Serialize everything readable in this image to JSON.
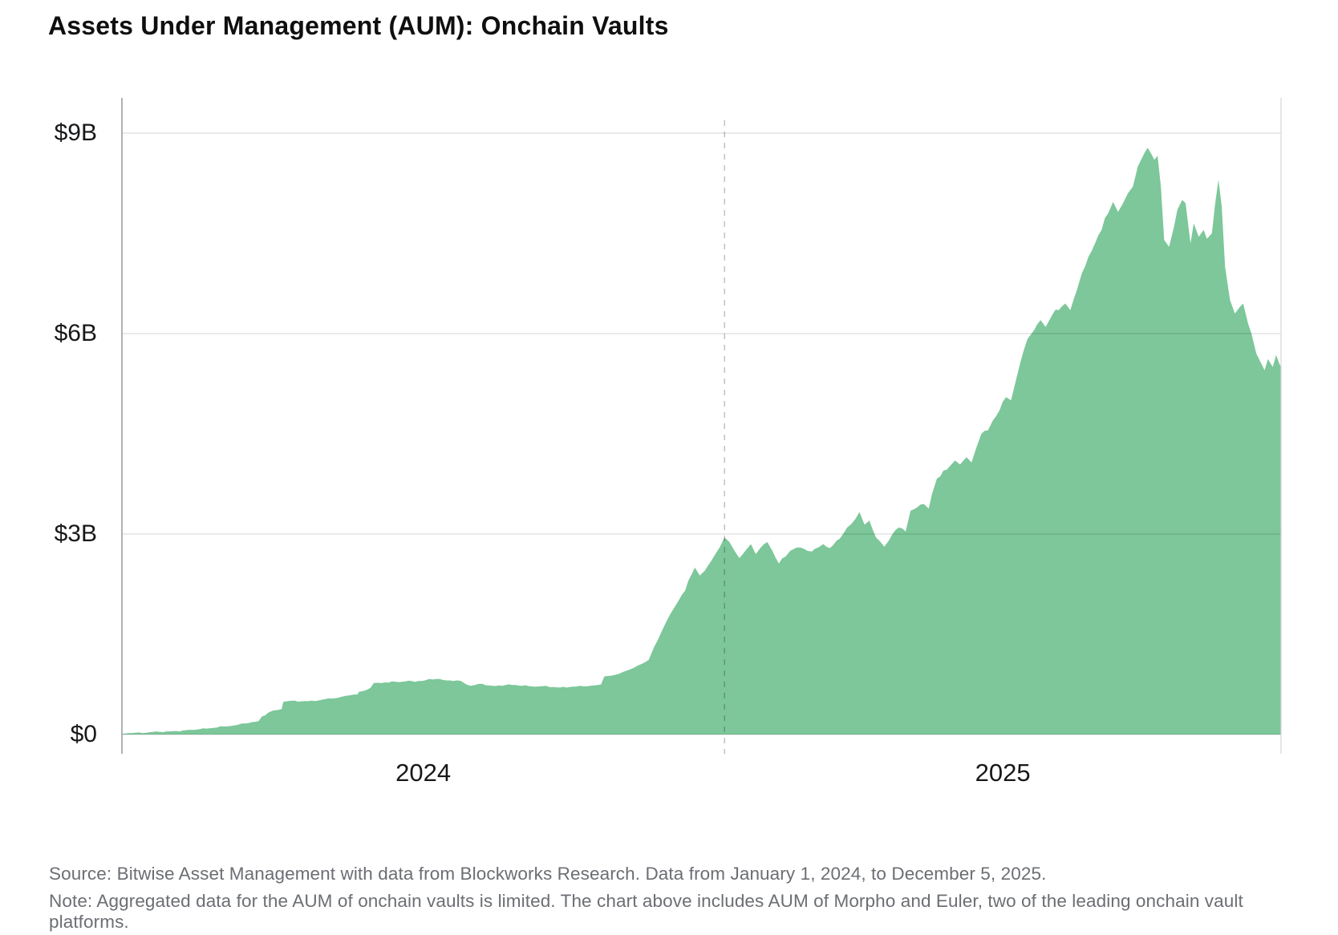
{
  "title": "Assets Under Management (AUM): Onchain Vaults",
  "footer": {
    "source": "Source: Bitwise Asset Management with data from Blockworks Research. Data from January 1, 2024, to December 5, 2025.",
    "note": "Note: Aggregated data for the AUM of onchain vaults is limited. The chart above includes AUM of Morpho and Euler, two of the leading onchain vault platforms."
  },
  "colors": {
    "area": "#7dc79a",
    "grid_on_white": "#e2e2e2",
    "axis_left": "#9e9e9e",
    "axis_right": "#d6d6d6",
    "dashed_reference": "#bdbdbd",
    "title_text": "#0f0f10",
    "tick_text": "#17181a",
    "footer_text": "#6b6e73"
  },
  "chart_data": {
    "type": "area",
    "title": "Assets Under Management (AUM): Onchain Vaults",
    "unit": "USD billions",
    "x_unit": "days since 2024-01-01",
    "x_start_date": "2024-01-01",
    "x_end_date": "2025-12-05",
    "x_domain_days": 704,
    "ylim": [
      0,
      9.5
    ],
    "grid": "horizontal",
    "legend": "none",
    "y_ticks": [
      {
        "label": "$0",
        "value": 0
      },
      {
        "label": "$3B",
        "value": 3
      },
      {
        "label": "$6B",
        "value": 6
      },
      {
        "label": "$9B",
        "value": 9
      }
    ],
    "x_ticks": [
      {
        "label": "2024",
        "day": 183
      },
      {
        "label": "2025",
        "day": 535
      }
    ],
    "reference_line": {
      "date": "2025-01-01",
      "day": 366,
      "style": "dashed"
    },
    "series": [
      {
        "name": "Onchain vault AUM (Morpho + Euler)",
        "color": "#7dc79a",
        "points": [
          [
            0,
            0.01
          ],
          [
            4,
            0.02
          ],
          [
            23,
            0.04
          ],
          [
            43,
            0.07
          ],
          [
            62,
            0.12
          ],
          [
            77,
            0.17
          ],
          [
            83,
            0.2
          ],
          [
            85,
            0.27
          ],
          [
            89,
            0.33
          ],
          [
            92,
            0.36
          ],
          [
            97,
            0.38
          ],
          [
            98,
            0.49
          ],
          [
            101,
            0.5
          ],
          [
            111,
            0.5
          ],
          [
            121,
            0.52
          ],
          [
            131,
            0.55
          ],
          [
            136,
            0.58
          ],
          [
            143,
            0.6
          ],
          [
            144,
            0.64
          ],
          [
            148,
            0.66
          ],
          [
            151,
            0.7
          ],
          [
            153,
            0.77
          ],
          [
            160,
            0.78
          ],
          [
            170,
            0.79
          ],
          [
            180,
            0.8
          ],
          [
            191,
            0.83
          ],
          [
            199,
            0.81
          ],
          [
            206,
            0.8
          ],
          [
            212,
            0.73
          ],
          [
            219,
            0.76
          ],
          [
            225,
            0.73
          ],
          [
            233,
            0.74
          ],
          [
            243,
            0.73
          ],
          [
            253,
            0.72
          ],
          [
            262,
            0.71
          ],
          [
            272,
            0.71
          ],
          [
            282,
            0.72
          ],
          [
            291,
            0.75
          ],
          [
            293,
            0.87
          ],
          [
            297,
            0.88
          ],
          [
            302,
            0.91
          ],
          [
            306,
            0.95
          ],
          [
            311,
            1.0
          ],
          [
            316,
            1.06
          ],
          [
            320,
            1.12
          ],
          [
            323,
            1.3
          ],
          [
            328,
            1.55
          ],
          [
            333,
            1.8
          ],
          [
            338,
            2.0
          ],
          [
            342,
            2.15
          ],
          [
            344,
            2.3
          ],
          [
            348,
            2.5
          ],
          [
            351,
            2.38
          ],
          [
            354,
            2.45
          ],
          [
            358,
            2.6
          ],
          [
            363,
            2.8
          ],
          [
            366,
            2.95
          ],
          [
            369,
            2.88
          ],
          [
            372,
            2.75
          ],
          [
            375,
            2.64
          ],
          [
            379,
            2.76
          ],
          [
            382,
            2.85
          ],
          [
            385,
            2.7
          ],
          [
            388,
            2.8
          ],
          [
            392,
            2.88
          ],
          [
            395,
            2.75
          ],
          [
            399,
            2.56
          ],
          [
            403,
            2.66
          ],
          [
            406,
            2.75
          ],
          [
            410,
            2.8
          ],
          [
            414,
            2.78
          ],
          [
            419,
            2.74
          ],
          [
            423,
            2.8
          ],
          [
            426,
            2.85
          ],
          [
            430,
            2.79
          ],
          [
            434,
            2.9
          ],
          [
            438,
            3.0
          ],
          [
            443,
            3.15
          ],
          [
            448,
            3.33
          ],
          [
            451,
            3.14
          ],
          [
            454,
            3.2
          ],
          [
            458,
            2.95
          ],
          [
            463,
            2.81
          ],
          [
            468,
            3.0
          ],
          [
            472,
            3.1
          ],
          [
            476,
            3.04
          ],
          [
            479,
            3.35
          ],
          [
            483,
            3.4
          ],
          [
            487,
            3.45
          ],
          [
            490,
            3.38
          ],
          [
            492,
            3.6
          ],
          [
            495,
            3.83
          ],
          [
            499,
            3.95
          ],
          [
            503,
            4.02
          ],
          [
            506,
            4.1
          ],
          [
            509,
            4.04
          ],
          [
            513,
            4.15
          ],
          [
            516,
            4.07
          ],
          [
            519,
            4.3
          ],
          [
            522,
            4.5
          ],
          [
            526,
            4.55
          ],
          [
            529,
            4.7
          ],
          [
            533,
            4.85
          ],
          [
            537,
            5.05
          ],
          [
            540,
            5.0
          ],
          [
            543,
            5.3
          ],
          [
            546,
            5.6
          ],
          [
            550,
            5.92
          ],
          [
            554,
            6.05
          ],
          [
            558,
            6.2
          ],
          [
            561,
            6.1
          ],
          [
            565,
            6.28
          ],
          [
            569,
            6.35
          ],
          [
            573,
            6.45
          ],
          [
            576,
            6.35
          ],
          [
            580,
            6.65
          ],
          [
            583,
            6.9
          ],
          [
            587,
            7.15
          ],
          [
            591,
            7.35
          ],
          [
            595,
            7.55
          ],
          [
            599,
            7.8
          ],
          [
            602,
            7.97
          ],
          [
            605,
            7.82
          ],
          [
            608,
            7.95
          ],
          [
            611,
            8.1
          ],
          [
            614,
            8.2
          ],
          [
            617,
            8.5
          ],
          [
            619,
            8.6
          ],
          [
            621,
            8.7
          ],
          [
            623,
            8.78
          ],
          [
            625,
            8.7
          ],
          [
            627,
            8.6
          ],
          [
            629,
            8.66
          ],
          [
            631,
            8.2
          ],
          [
            633,
            7.4
          ],
          [
            636,
            7.3
          ],
          [
            639,
            7.6
          ],
          [
            641,
            7.85
          ],
          [
            644,
            8.0
          ],
          [
            646,
            7.95
          ],
          [
            649,
            7.35
          ],
          [
            651,
            7.65
          ],
          [
            654,
            7.45
          ],
          [
            657,
            7.55
          ],
          [
            659,
            7.42
          ],
          [
            662,
            7.5
          ],
          [
            664,
            7.95
          ],
          [
            666,
            8.3
          ],
          [
            668,
            7.9
          ],
          [
            670,
            7.0
          ],
          [
            673,
            6.5
          ],
          [
            676,
            6.3
          ],
          [
            679,
            6.4
          ],
          [
            681,
            6.45
          ],
          [
            684,
            6.15
          ],
          [
            686,
            6.0
          ],
          [
            689,
            5.7
          ],
          [
            691,
            5.6
          ],
          [
            694,
            5.45
          ],
          [
            696,
            5.62
          ],
          [
            699,
            5.5
          ],
          [
            701,
            5.68
          ],
          [
            703,
            5.55
          ],
          [
            704,
            5.5
          ]
        ]
      }
    ]
  }
}
